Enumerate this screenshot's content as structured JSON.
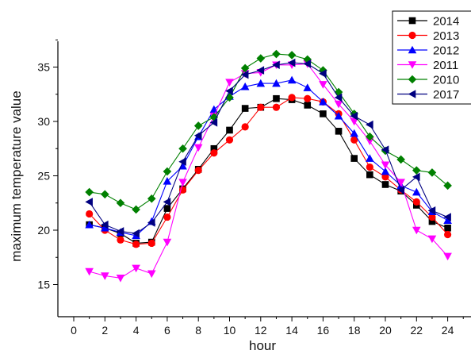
{
  "chart_data": {
    "type": "line",
    "title": "",
    "xlabel": "hour",
    "ylabel": "maximum temperature value",
    "xlim": [
      -0.5,
      25.5
    ],
    "ylim": [
      13,
      38
    ],
    "xticks": [
      0,
      2,
      4,
      6,
      8,
      10,
      12,
      14,
      16,
      18,
      20,
      22,
      24
    ],
    "yticks": [
      15,
      20,
      25,
      30,
      35
    ],
    "grid": false,
    "legend_position": "top-right",
    "x": [
      1,
      2,
      3,
      4,
      5,
      6,
      7,
      8,
      9,
      10,
      11,
      12,
      13,
      14,
      15,
      16,
      17,
      18,
      19,
      20,
      21,
      22,
      23,
      24
    ],
    "series": [
      {
        "name": "2014",
        "color": "#000000",
        "marker": "square",
        "values": [
          20.5,
          20.2,
          19.7,
          18.8,
          18.9,
          22.0,
          23.8,
          25.6,
          27.5,
          29.2,
          31.2,
          31.3,
          32.1,
          32.0,
          31.5,
          30.7,
          29.1,
          26.6,
          25.1,
          24.2,
          23.6,
          22.3,
          20.8,
          20.2
        ]
      },
      {
        "name": "2013",
        "color": "#ff0000",
        "marker": "circle",
        "values": [
          21.5,
          20.0,
          19.1,
          18.7,
          18.8,
          21.2,
          23.7,
          25.5,
          27.1,
          28.3,
          29.5,
          31.3,
          31.3,
          32.2,
          32.1,
          31.8,
          30.7,
          28.3,
          25.8,
          24.9,
          23.7,
          22.6,
          21.2,
          19.6
        ]
      },
      {
        "name": "2012",
        "color": "#0000ff",
        "marker": "triangle-up",
        "values": [
          20.5,
          20.2,
          19.8,
          19.5,
          20.8,
          24.5,
          25.9,
          28.6,
          31.1,
          32.3,
          33.2,
          33.5,
          33.5,
          33.8,
          33.1,
          31.8,
          30.5,
          28.9,
          26.6,
          25.4,
          24.1,
          23.5,
          21.7,
          20.9
        ]
      },
      {
        "name": "2011",
        "color": "#ff00ff",
        "marker": "triangle-down",
        "values": [
          16.2,
          15.8,
          15.6,
          16.5,
          16.0,
          18.9,
          24.4,
          27.6,
          30.5,
          33.6,
          34.4,
          34.5,
          35.2,
          35.2,
          35.3,
          33.4,
          31.6,
          30.0,
          28.2,
          26.0,
          24.4,
          20.0,
          19.2,
          17.6
        ]
      },
      {
        "name": "2010",
        "color": "#008000",
        "marker": "diamond",
        "values": [
          23.5,
          23.3,
          22.5,
          21.9,
          22.9,
          25.4,
          27.5,
          29.6,
          30.4,
          32.2,
          34.9,
          35.8,
          36.2,
          36.1,
          35.7,
          34.7,
          32.7,
          30.7,
          28.6,
          27.3,
          26.5,
          25.5,
          25.3,
          24.1
        ]
      },
      {
        "name": "2017",
        "color": "#000080",
        "marker": "triangle-left",
        "values": [
          22.6,
          20.5,
          19.9,
          19.7,
          20.7,
          22.6,
          26.3,
          28.7,
          29.9,
          32.8,
          34.3,
          34.7,
          35.2,
          35.4,
          35.3,
          34.4,
          32.2,
          30.5,
          29.7,
          27.4,
          23.7,
          24.9,
          21.8,
          21.2
        ]
      }
    ]
  }
}
